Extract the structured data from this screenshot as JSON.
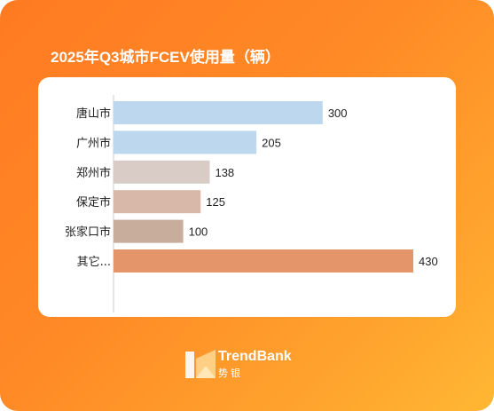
{
  "chart_data": {
    "type": "bar",
    "orientation": "horizontal",
    "title": "2025年Q3城市FCEV使用量（辆）",
    "categories": [
      "唐山市",
      "广州市",
      "郑州市",
      "保定市",
      "张家口市",
      "其它..."
    ],
    "values": [
      300,
      205,
      138,
      125,
      100,
      430
    ],
    "colors": [
      "#bdd7ee",
      "#bdd7ee",
      "#d9ccc6",
      "#d8b8a8",
      "#c9ad9c",
      "#e5956a"
    ],
    "xlim": [
      0,
      430
    ],
    "grid": false,
    "legend": "none"
  },
  "brand": {
    "name_en": "TrendBank",
    "name_cn": "势银"
  }
}
